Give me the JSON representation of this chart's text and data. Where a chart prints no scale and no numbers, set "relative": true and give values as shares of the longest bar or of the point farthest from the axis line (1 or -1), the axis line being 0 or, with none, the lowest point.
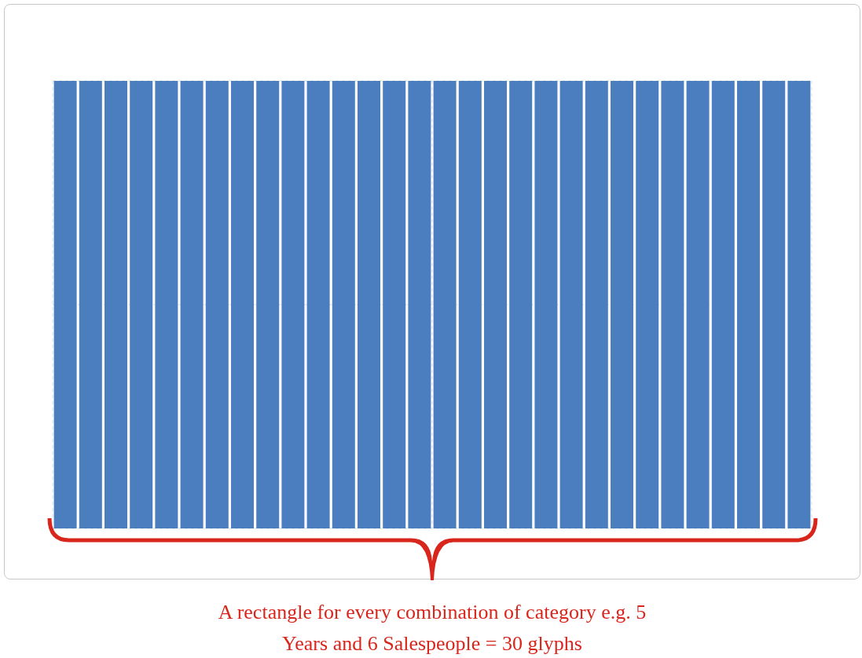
{
  "chart_data": {
    "type": "bar",
    "relative": true,
    "grid": true,
    "categories": [
      null,
      null,
      null,
      null,
      null,
      null,
      null,
      null,
      null,
      null,
      null,
      null,
      null,
      null,
      null,
      null,
      null,
      null,
      null,
      null,
      null,
      null,
      null,
      null,
      null,
      null,
      null,
      null,
      null,
      null
    ],
    "values": [
      1,
      1,
      1,
      1,
      1,
      1,
      1,
      1,
      1,
      1,
      1,
      1,
      1,
      1,
      1,
      1,
      1,
      1,
      1,
      1,
      1,
      1,
      1,
      1,
      1,
      1,
      1,
      1,
      1,
      1
    ],
    "color": "#4a7ebf",
    "annotations": [
      "A rectangle for every combination of category e.g. 5 Years and 6 Salespeople = 30 glyphs"
    ]
  }
}
